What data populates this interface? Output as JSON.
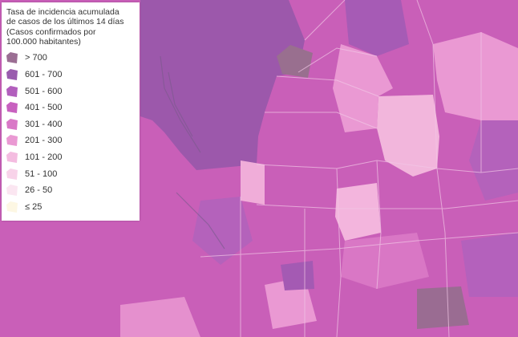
{
  "legend": {
    "title_lines": [
      "Tasa de incidencia acumulada",
      "de casos de los últimos 14 días",
      "(Casos confirmados por",
      "100.000 habitantes)"
    ],
    "items": [
      {
        "label": "> 700",
        "color": "#9b6e93"
      },
      {
        "label": "601 - 700",
        "color": "#9a5cae"
      },
      {
        "label": "501 - 600",
        "color": "#b25fbd"
      },
      {
        "label": "401 - 500",
        "color": "#c861bf"
      },
      {
        "label": "301 - 400",
        "color": "#d978c7"
      },
      {
        "label": "201 - 300",
        "color": "#ea99d3"
      },
      {
        "label": "101 - 200",
        "color": "#f4bce0"
      },
      {
        "label": "51 - 100",
        "color": "#f8d3e9"
      },
      {
        "label": "26 - 50",
        "color": "#fbe6f1"
      },
      {
        "label": "≤ 25",
        "color": "#fdf7e3"
      }
    ]
  }
}
